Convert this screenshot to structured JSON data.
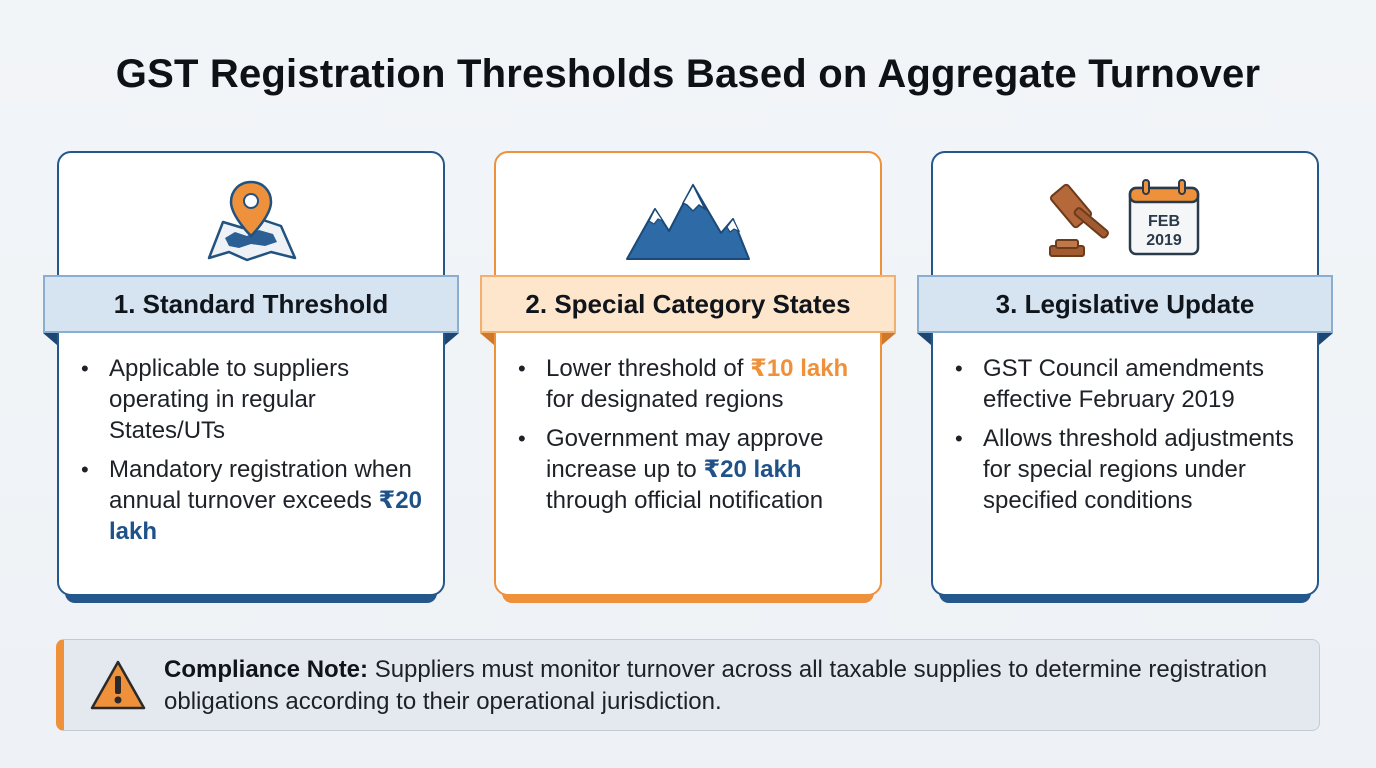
{
  "title": "GST Registration Thresholds Based on Aggregate Turnover",
  "cards": [
    {
      "icon": "map-pin-icon",
      "heading": "1. Standard Threshold",
      "bullets": [
        {
          "text": "Applicable to suppliers operating in regular States/UTs",
          "highlight": ""
        },
        {
          "text": "Mandatory registration when annual turnover exceeds ",
          "highlight": "₹20 lakh"
        }
      ]
    },
    {
      "icon": "mountain-icon",
      "heading": "2. Special Category States",
      "bullets": [
        {
          "pre": "Lower threshold of ",
          "highlight": "₹10 lakh",
          "post": " for designated regions"
        },
        {
          "pre": "Government may approve increase up to ",
          "highlight": "₹20 lakh",
          "post": " through official notification"
        }
      ]
    },
    {
      "icon": "gavel-calendar-icon",
      "calendar_month": "FEB",
      "calendar_year": "2019",
      "heading": "3. Legislative Update",
      "bullets": [
        {
          "text": "GST Council amendments effective February 2019"
        },
        {
          "text": "Allows threshold adjustments for special regions under specified conditions"
        }
      ]
    }
  ],
  "note": {
    "label": "Compliance Note:",
    "text": " Suppliers must monitor turnover across all taxable supplies to determine registration obligations according to their operational jurisdiction."
  },
  "colors": {
    "blue": "#24578c",
    "orange": "#ef913a",
    "highlight_blue": "#1f5289"
  }
}
